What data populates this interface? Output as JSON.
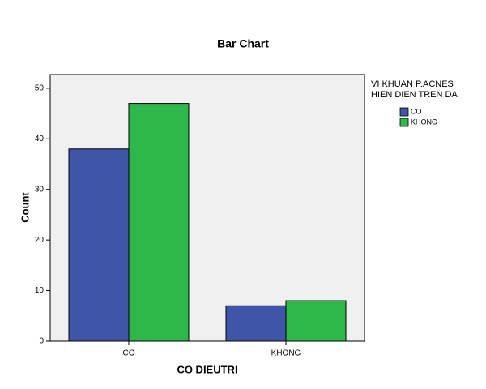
{
  "chart_data": {
    "type": "bar",
    "title": "Bar Chart",
    "x_label": "CO DIEUTRI",
    "y_label": "Count",
    "categories": [
      "CO",
      "KHONG"
    ],
    "legend_title": [
      "VI KHUAN P.ACNES",
      "HIEN DIEN TREN DA"
    ],
    "legend_position": "right",
    "series": [
      {
        "name": "CO",
        "color": "#3f55a8",
        "values": [
          38,
          7
        ]
      },
      {
        "name": "KHONG",
        "color": "#2eb84c",
        "values": [
          47,
          8
        ]
      }
    ],
    "ylim": [
      0,
      52.7
    ],
    "yticks": [
      0,
      10,
      20,
      30,
      40,
      50
    ],
    "grid": false
  }
}
